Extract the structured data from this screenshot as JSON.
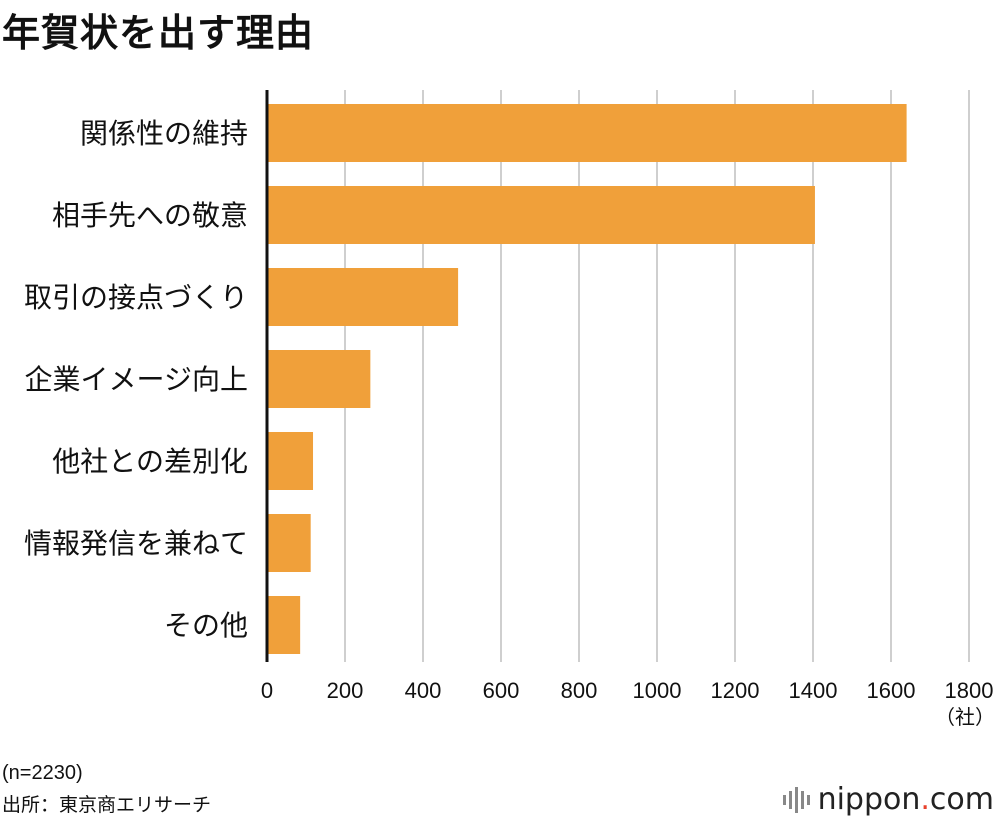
{
  "title": "年賀状を出す理由",
  "chart_data": {
    "type": "bar",
    "orientation": "horizontal",
    "categories": [
      "関係性の維持",
      "相手先への敬意",
      "取引の接点づくり",
      "企業イメージ向上",
      "他社との差別化",
      "情報発信を兼ねて",
      "その他"
    ],
    "values": [
      1640,
      1405,
      490,
      265,
      118,
      112,
      85
    ],
    "xlim": [
      0,
      1800
    ],
    "xticks": [
      0,
      200,
      400,
      600,
      800,
      1000,
      1200,
      1400,
      1600,
      1800
    ],
    "unit": "（社）",
    "grid": true,
    "bar_color": "#f0a03a"
  },
  "footnote_n": "(n=2230)",
  "source": "出所：東京商エリサーチ",
  "logo": {
    "main": "nippon",
    "dot": ".",
    "tail": "com"
  }
}
